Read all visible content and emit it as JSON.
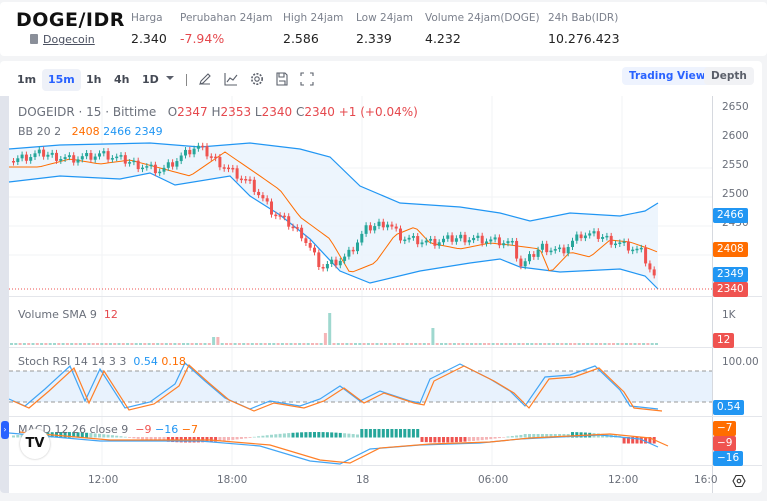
{
  "header": {
    "pair": "DOGE/IDR",
    "coin_link": "Dogecoin",
    "stats": [
      {
        "label": "Harga",
        "value": "2.340",
        "negative": false
      },
      {
        "label": "Perubahan 24jam",
        "value": "-7.94%",
        "negative": true
      },
      {
        "label": "High 24jam",
        "value": "2.586",
        "negative": false
      },
      {
        "label": "Low 24jam",
        "value": "2.339",
        "negative": false
      },
      {
        "label": "Volume 24jam(DOGE)",
        "value": "4.232",
        "negative": false
      },
      {
        "label": "24h Bab(IDR)",
        "value": "10.276.423",
        "negative": false
      }
    ]
  },
  "toolbar": {
    "timeframes": [
      "1m",
      "15m",
      "1h",
      "4h",
      "1D"
    ],
    "active_timeframe": "15m",
    "icons": [
      "chevron-down-icon",
      "draw-icon",
      "indicators-icon",
      "settings-icon",
      "save-icon",
      "fullscreen-icon"
    ],
    "trading_view_label": "Trading View",
    "depth_label": "Depth"
  },
  "chart": {
    "symbol_line": "DOGEIDR · 15 · Bittime",
    "ohlc": {
      "o_label": "O",
      "o": "2347",
      "h_label": "H",
      "h": "2353",
      "l_label": "L",
      "l": "2340",
      "c_label": "C",
      "c": "2340",
      "change": "+1 (+0.04%)"
    },
    "bb": {
      "label": "BB 20 2",
      "basis": "2408",
      "upper": "2466",
      "lower": "2349"
    },
    "y_axis": [
      "2650",
      "2600",
      "2550",
      "2500",
      "2450"
    ],
    "price_tags": {
      "upper": "2466",
      "basis": "2408",
      "lower": "2349",
      "last": "2340"
    },
    "volume": {
      "label": "Volume SMA 9",
      "value": "12",
      "axis": "1K",
      "tag": "12"
    },
    "stoch_rsi": {
      "label": "Stoch RSI 14 14 3 3",
      "k": "0.54",
      "d": "0.18",
      "axis": "100.00",
      "tag": "0.54"
    },
    "macd": {
      "label": "MACD 12 26 close 9",
      "hist": "−9",
      "macd": "−16",
      "signal": "−7",
      "tags": [
        "−7",
        "−9",
        "−16"
      ]
    },
    "x_axis": [
      "12:00",
      "18:00",
      "18",
      "06:00",
      "12:00",
      "16:0"
    ],
    "colors": {
      "up": "#26a69a",
      "down": "#ef5350",
      "bb_band": "#2196f3",
      "bb_basis": "#ff6d00",
      "accent": "#2962ff"
    }
  }
}
